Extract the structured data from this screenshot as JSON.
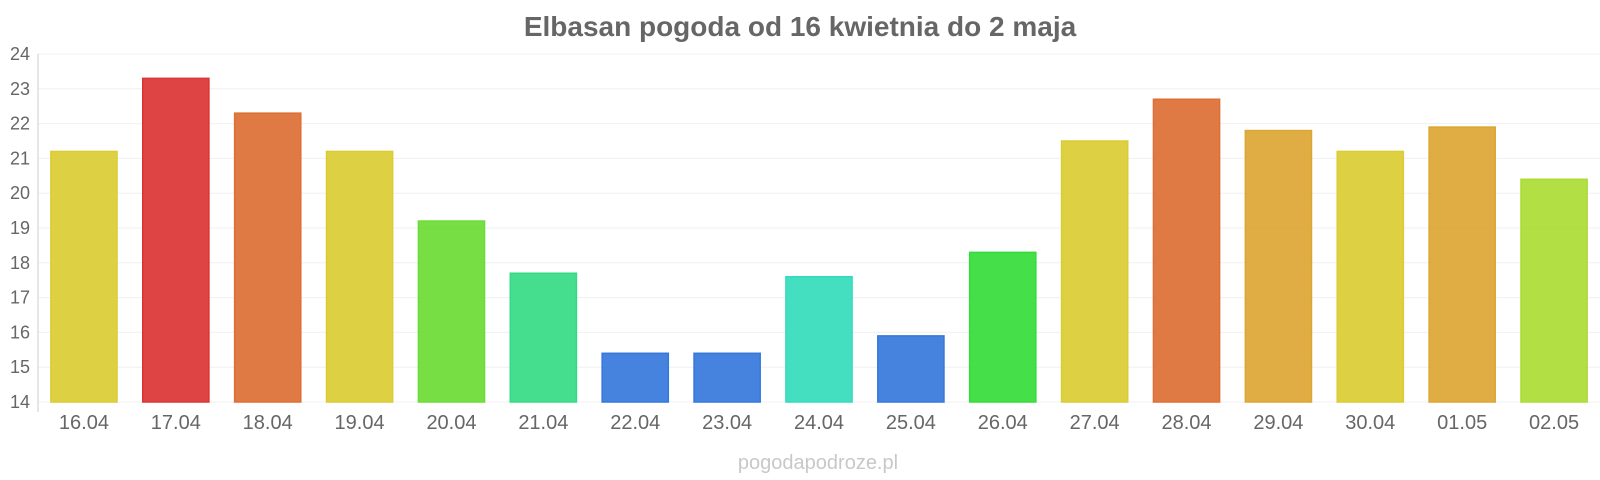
{
  "chart_data": {
    "type": "bar",
    "title": "Elbasan pogoda od 16 kwietnia do 2 maja",
    "xlabel": "",
    "ylabel": "",
    "ylim": [
      14,
      24
    ],
    "yticks": [
      14,
      15,
      16,
      17,
      18,
      19,
      20,
      21,
      22,
      23,
      24
    ],
    "grid": true,
    "categories": [
      "16.04",
      "17.04",
      "18.04",
      "19.04",
      "20.04",
      "21.04",
      "22.04",
      "23.04",
      "24.04",
      "25.04",
      "26.04",
      "27.04",
      "28.04",
      "29.04",
      "30.04",
      "01.05",
      "02.05"
    ],
    "values": [
      21.2,
      23.3,
      22.3,
      21.2,
      19.2,
      17.7,
      15.4,
      15.4,
      17.6,
      15.9,
      18.3,
      21.5,
      22.7,
      21.8,
      21.2,
      21.9,
      20.4
    ],
    "colors": [
      "#dbcc33",
      "#dc3434",
      "#dd6f34",
      "#dbcc33",
      "#6bdc34",
      "#34db84",
      "#3578db",
      "#3578db",
      "#34dbbb",
      "#3578db",
      "#34dc3a",
      "#dbcc33",
      "#dd6f34",
      "#dca634",
      "#dbcc33",
      "#dca634",
      "#abdc34"
    ]
  },
  "watermark": "pogodapodroze.pl"
}
